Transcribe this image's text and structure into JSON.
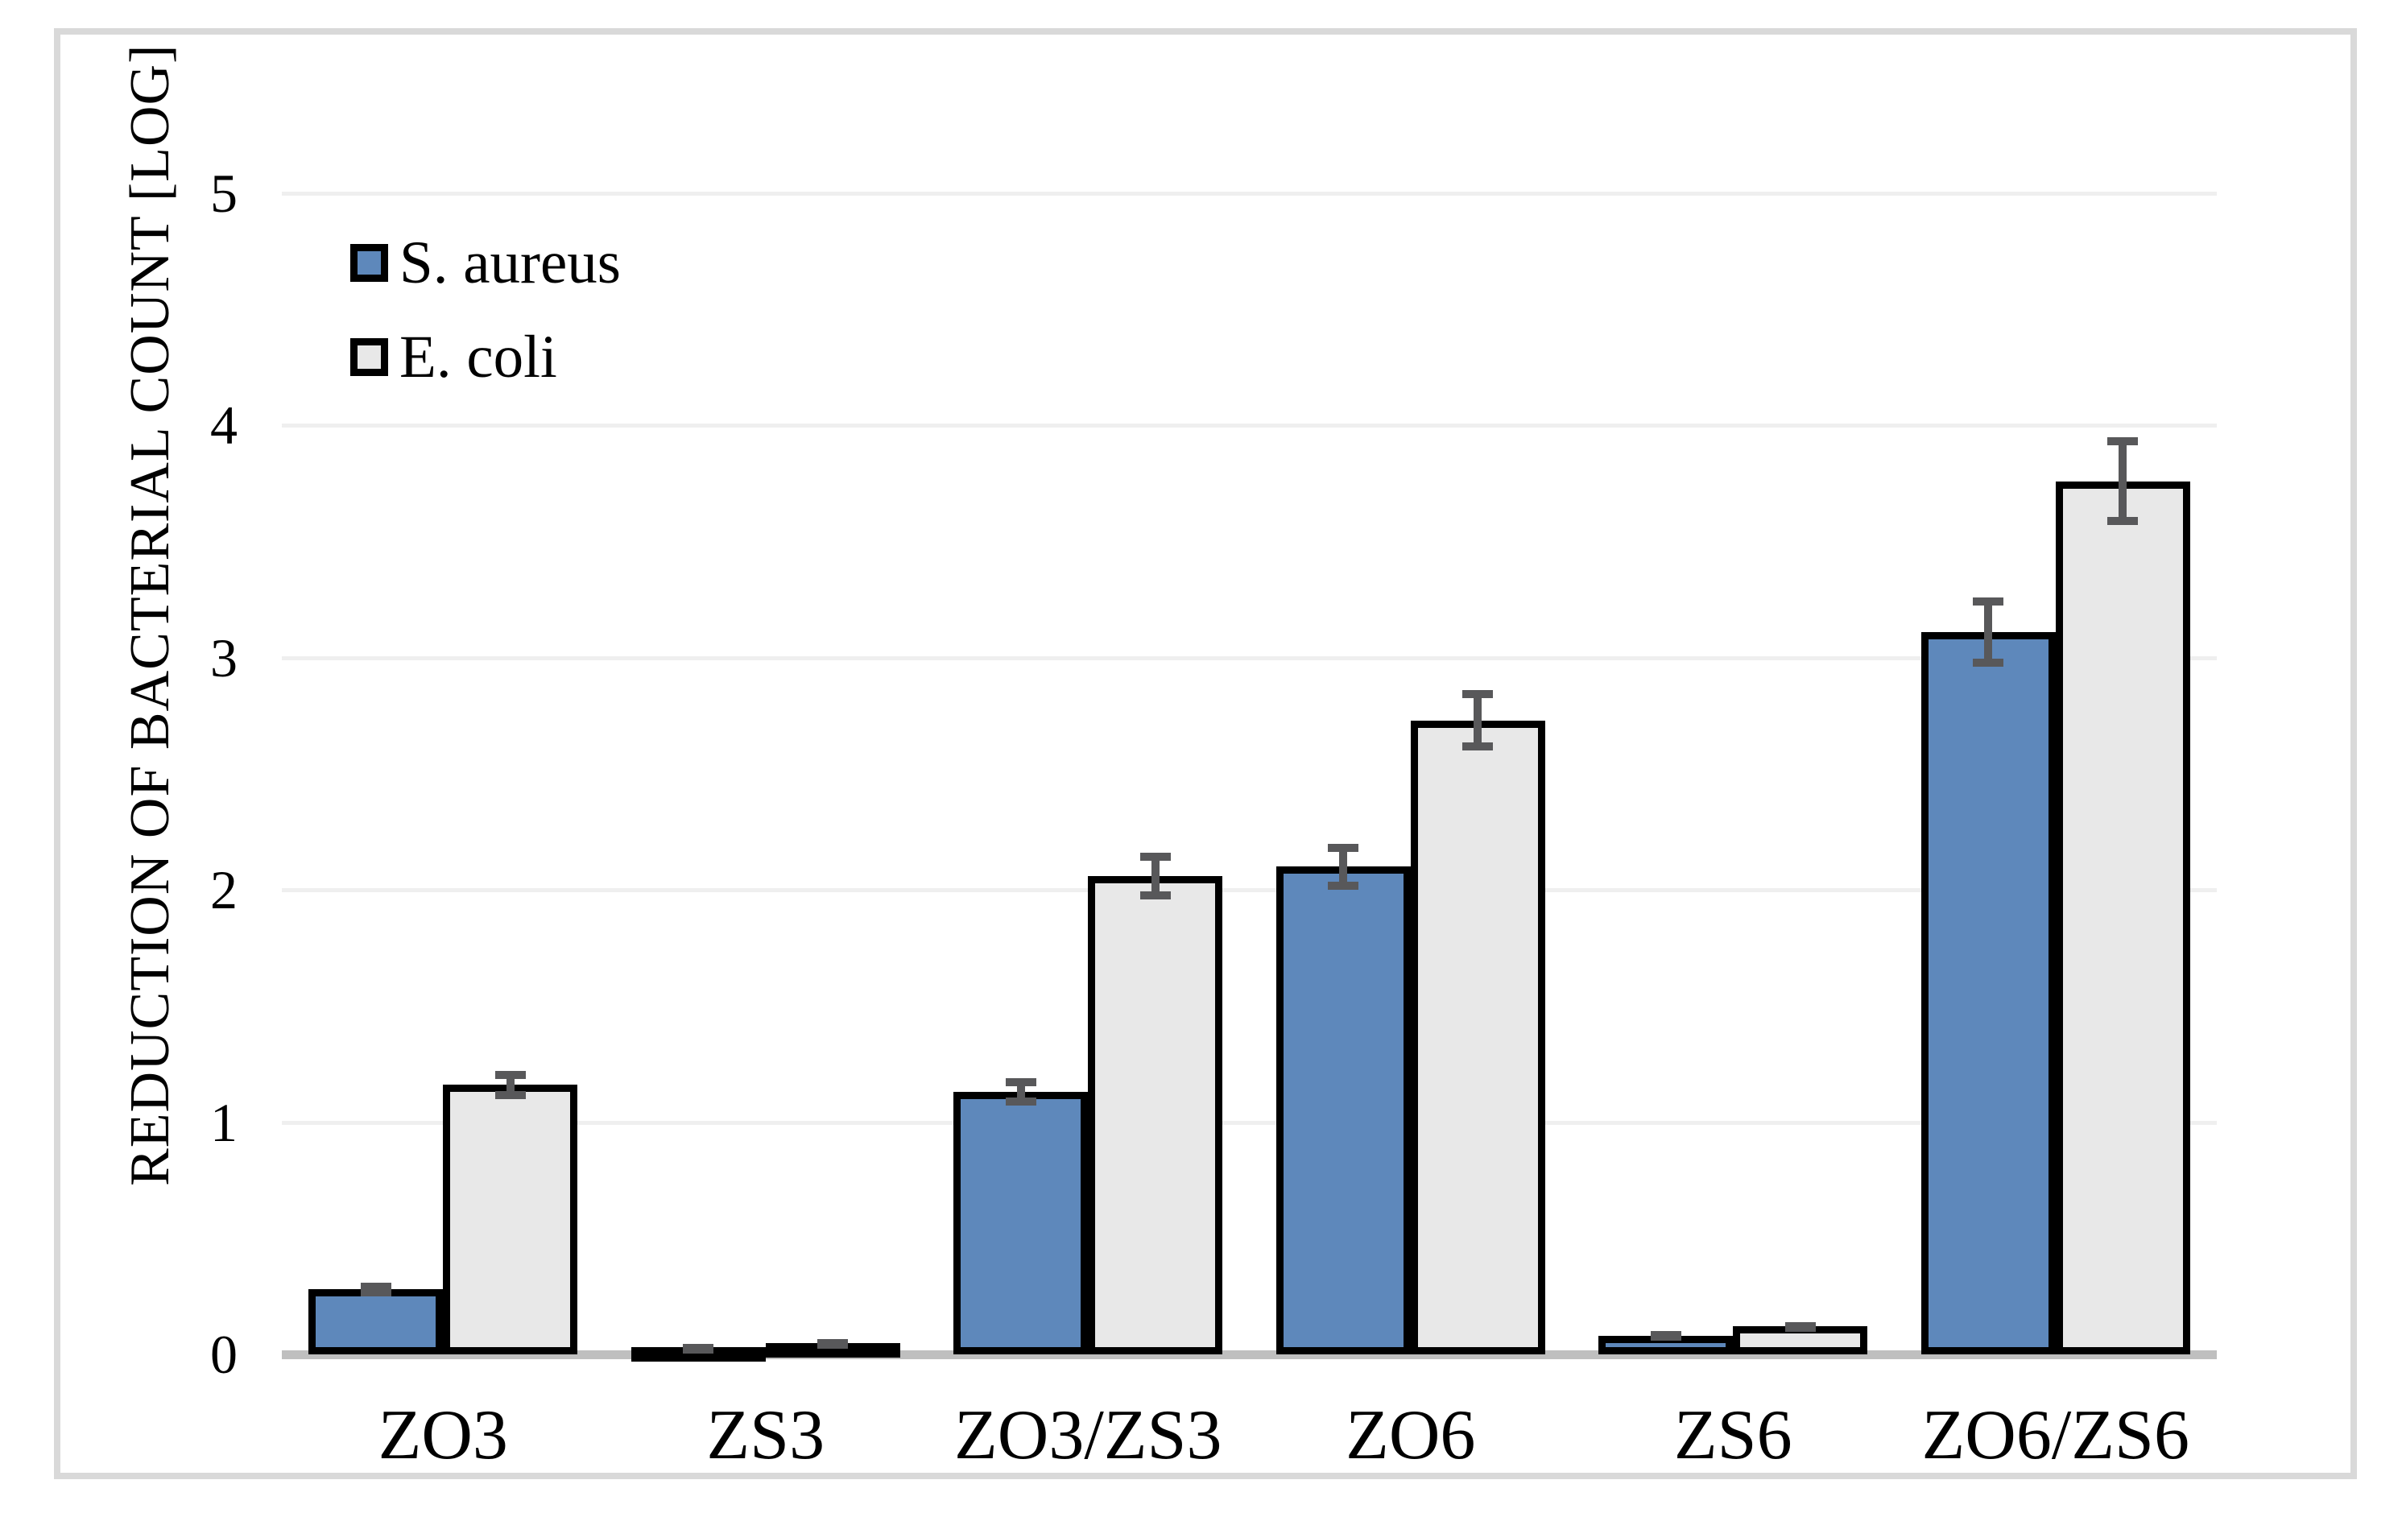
{
  "chart_data": {
    "type": "bar",
    "title": "",
    "categories": [
      "ZO3",
      "ZS3",
      "ZO3/ZS3",
      "ZO6",
      "ZS6",
      "ZO6/ZS6"
    ],
    "series": [
      {
        "name": "S. aureus",
        "color": "#5e88bb",
        "values": [
          0.28,
          0.03,
          1.13,
          2.1,
          0.08,
          3.11
        ],
        "errors": [
          0.03,
          0.015,
          0.06,
          0.1,
          0.02,
          0.15
        ]
      },
      {
        "name": "E. coli",
        "color": "#e8e8e8",
        "values": [
          1.16,
          0.05,
          2.06,
          2.73,
          0.12,
          3.76
        ],
        "errors": [
          0.06,
          0.015,
          0.1,
          0.13,
          0.02,
          0.19
        ]
      }
    ],
    "xlabel": "",
    "ylabel": "REDUCTION OF BACTERIAL COUNT [LOG]",
    "yticks": [
      0,
      1,
      2,
      3,
      4,
      5
    ],
    "ylim": [
      0,
      5
    ],
    "grid": true,
    "legend_position": "top-left",
    "error_bars": true
  },
  "legend": {
    "items": [
      {
        "label": "S. aureus",
        "color": "#5e88bb"
      },
      {
        "label": "E. coli",
        "color": "#e8e8e8"
      }
    ]
  },
  "colors": {
    "bar_border": "#000000",
    "error_bar": "#58585a",
    "gridline": "#efefef",
    "axis_baseline": "#bfbfbf",
    "chart_frame": "#d9d9d9",
    "background": "#ffffff"
  }
}
